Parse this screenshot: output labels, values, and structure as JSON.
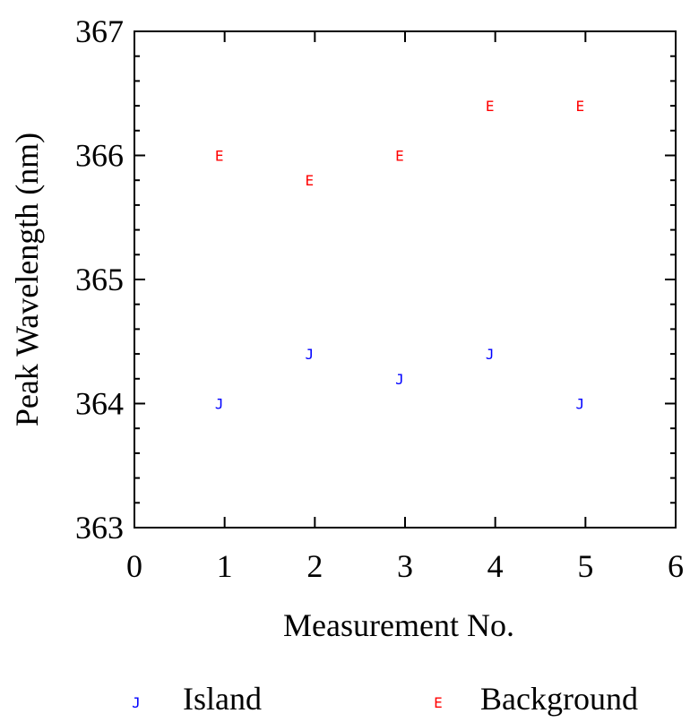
{
  "chart_data": {
    "type": "scatter",
    "xlabel": "Measurement No.",
    "ylabel": "Peak Wavelength (nm)",
    "xlim": [
      0,
      6
    ],
    "ylim": [
      363,
      367
    ],
    "x_ticks": [
      "0",
      "1",
      "2",
      "3",
      "4",
      "5",
      "6"
    ],
    "y_ticks": [
      "363",
      "364",
      "365",
      "366",
      "367"
    ],
    "grid": false,
    "legend_position": "bottom",
    "series": [
      {
        "name": "Island",
        "marker": "J",
        "color": "#0000ff",
        "x": [
          1,
          2,
          3,
          4,
          5
        ],
        "y": [
          364.0,
          364.4,
          364.2,
          364.4,
          364.0
        ]
      },
      {
        "name": "Background",
        "marker": "E",
        "color": "#ff0000",
        "x": [
          1,
          2,
          3,
          4,
          5
        ],
        "y": [
          366.0,
          365.8,
          366.0,
          366.4,
          366.4
        ]
      }
    ]
  }
}
